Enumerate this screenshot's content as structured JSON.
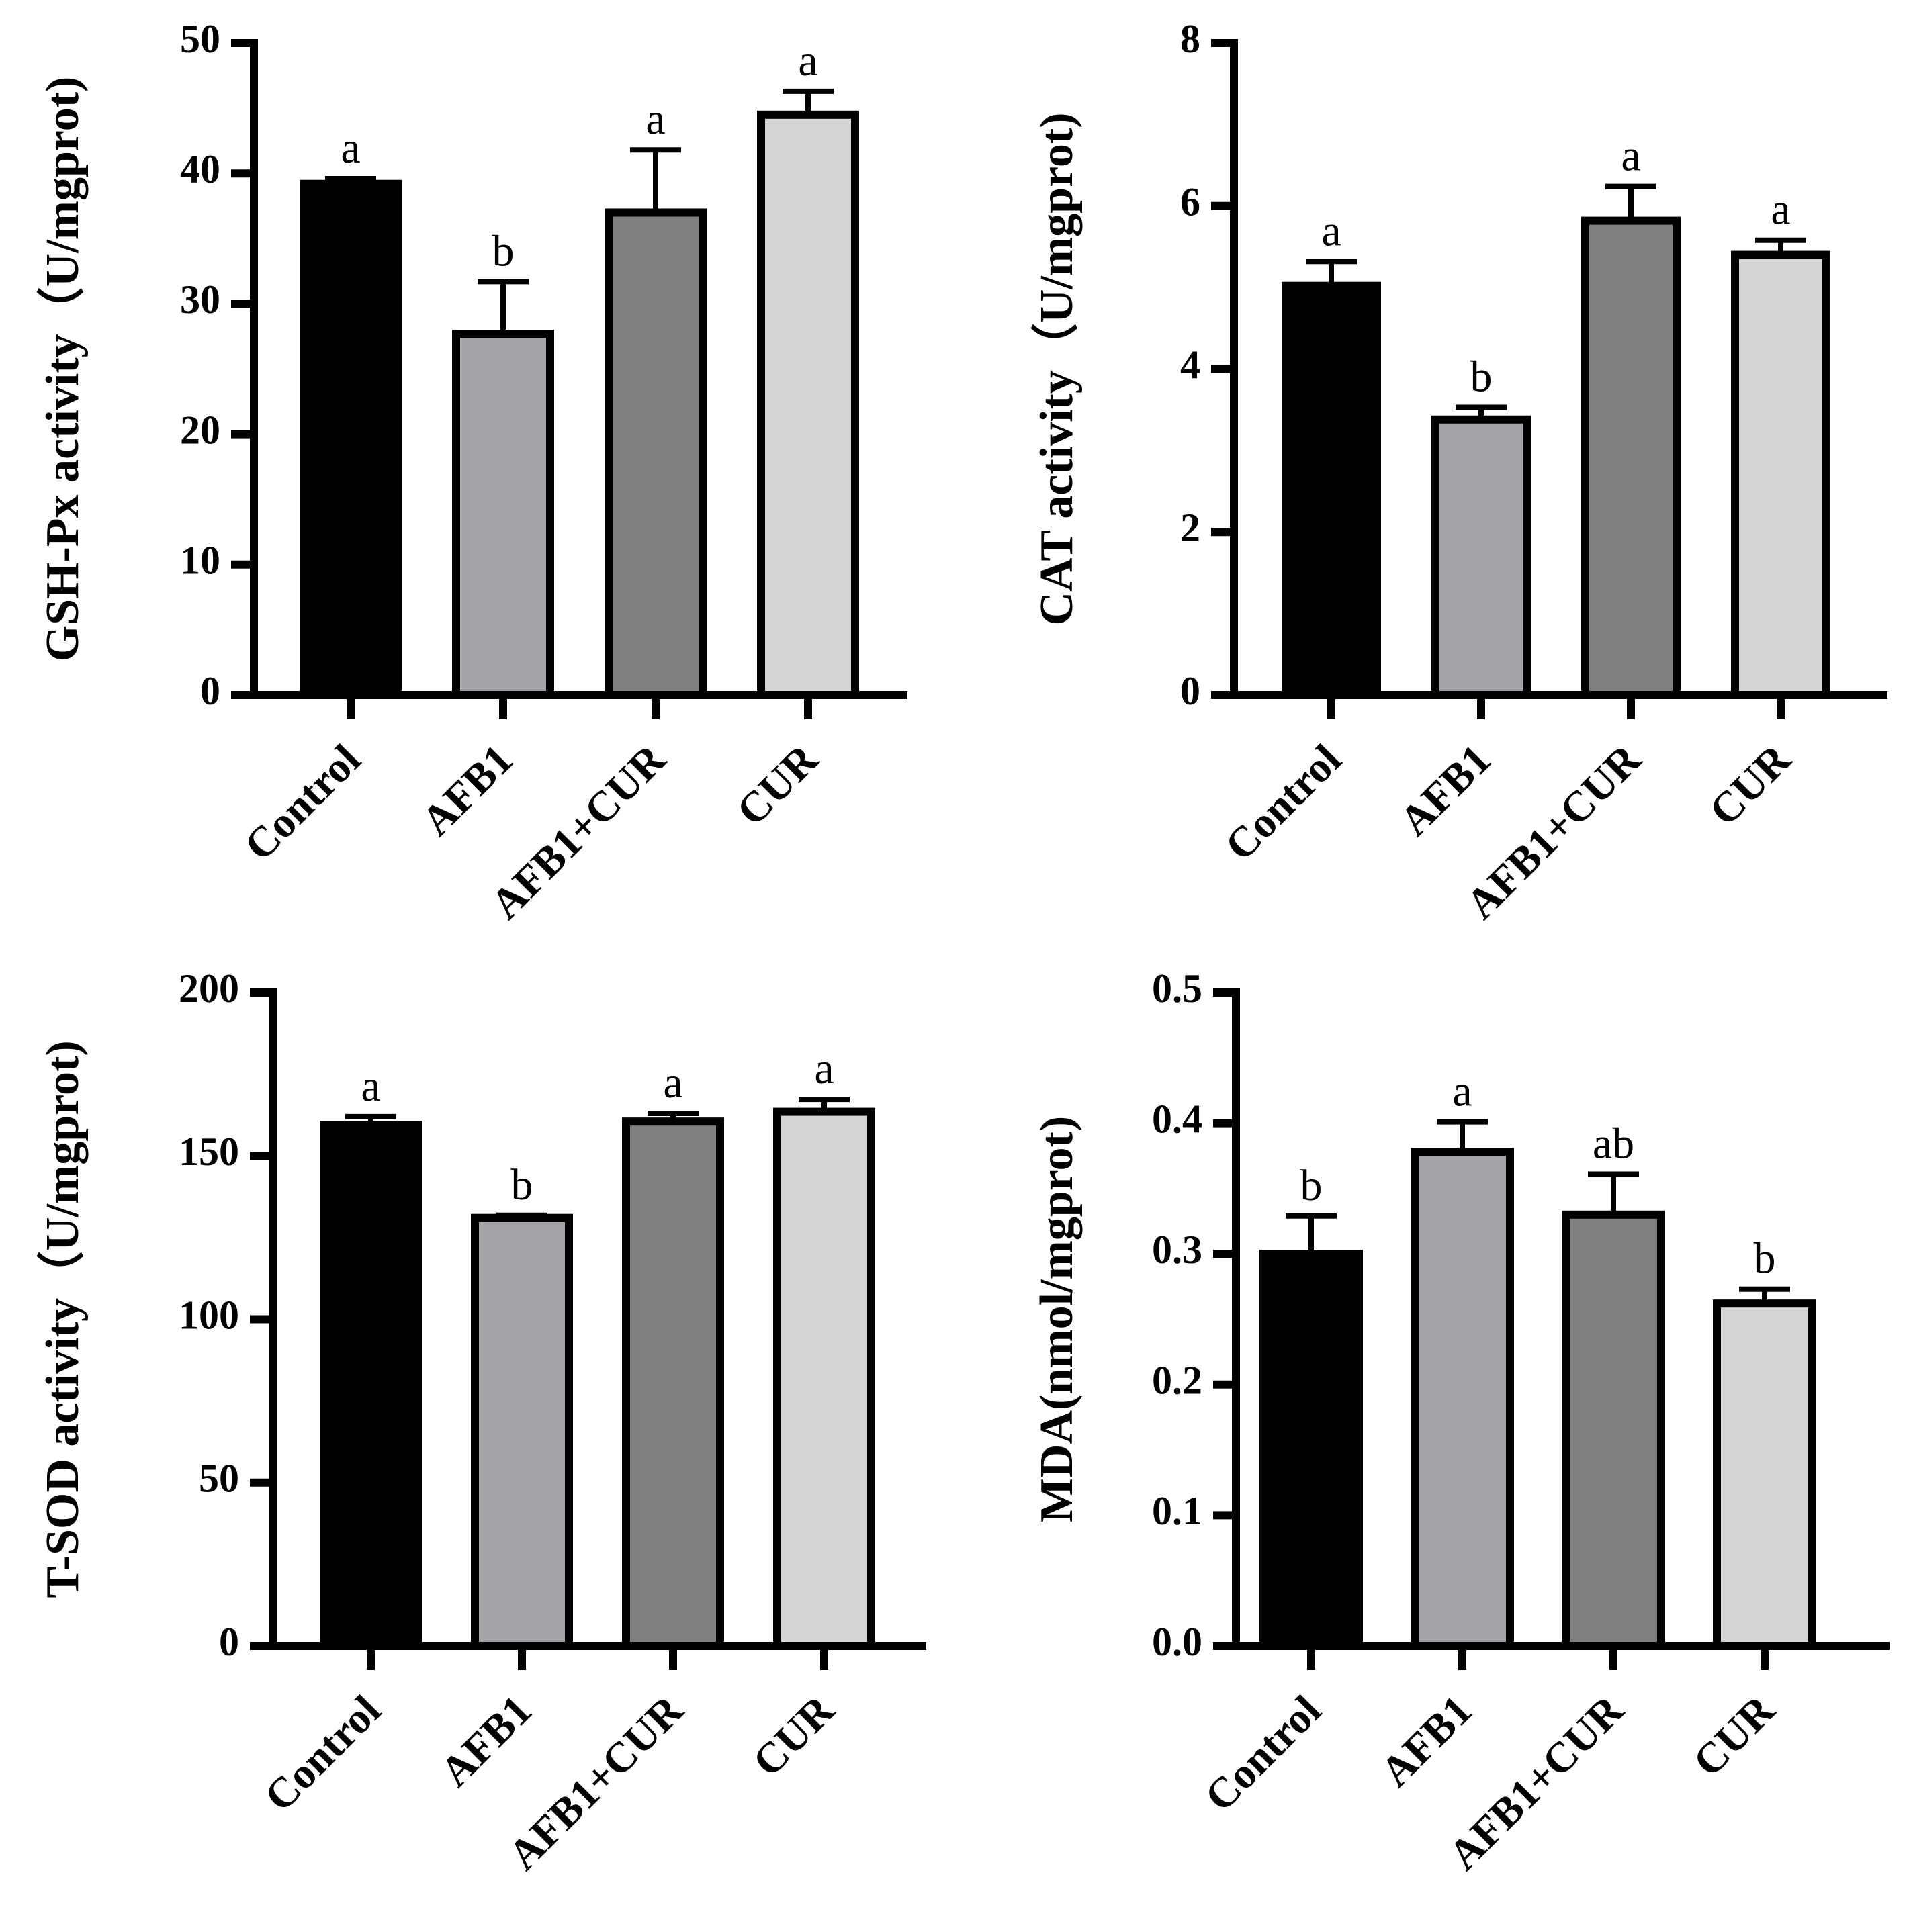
{
  "chart_data": [
    {
      "type": "bar",
      "ylabel": "GSH-Px activity（U/mgprot)",
      "categories": [
        "Control",
        "AFB1",
        "AFB1+CUR",
        "CUR"
      ],
      "values": [
        39.2,
        27.7,
        37.0,
        44.5
      ],
      "errors": [
        0.4,
        4.0,
        4.8,
        1.8
      ],
      "significance": [
        "a",
        "b",
        "a",
        "a"
      ],
      "colors": [
        "#000000",
        "#a3a3a8",
        "#7f7f7f",
        "#d4d4d4"
      ],
      "ylim": [
        0,
        50
      ],
      "yticks": [
        "0",
        "10",
        "20",
        "30",
        "40",
        "50"
      ]
    },
    {
      "type": "bar",
      "ylabel": "CAT activity（U/mgprot)",
      "categories": [
        "Control",
        "AFB1",
        "AFB1+CUR",
        "CUR"
      ],
      "values": [
        5.02,
        3.38,
        5.82,
        5.4
      ],
      "errors": [
        0.3,
        0.15,
        0.42,
        0.18
      ],
      "significance": [
        "a",
        "b",
        "a",
        "a"
      ],
      "colors": [
        "#000000",
        "#a3a3a8",
        "#7f7f7f",
        "#d4d4d4"
      ],
      "ylim": [
        0,
        8
      ],
      "yticks": [
        "0",
        "2",
        "4",
        "6",
        "8"
      ]
    },
    {
      "type": "bar",
      "ylabel": "T-SOD activity（U/mgprot)",
      "categories": [
        "Control",
        "AFB1",
        "AFB1+CUR",
        "CUR"
      ],
      "values": [
        159.5,
        131.0,
        160.5,
        163.5
      ],
      "errors": [
        2.5,
        0.8,
        2.5,
        3.8
      ],
      "significance": [
        "a",
        "b",
        "a",
        "a"
      ],
      "colors": [
        "#000000",
        "#a3a3a8",
        "#7f7f7f",
        "#d4d4d4"
      ],
      "ylim": [
        0,
        200
      ],
      "yticks": [
        "0",
        "50",
        "100",
        "150",
        "200"
      ]
    },
    {
      "type": "bar",
      "ylabel": "MDA(nmol/mgprot)",
      "categories": [
        "Control",
        "AFB1",
        "AFB1+CUR",
        "CUR"
      ],
      "values": [
        0.3,
        0.378,
        0.33,
        0.262
      ],
      "errors": [
        0.029,
        0.023,
        0.031,
        0.011
      ],
      "significance": [
        "b",
        "a",
        "ab",
        "b"
      ],
      "colors": [
        "#000000",
        "#a3a3a8",
        "#7f7f7f",
        "#d4d4d4"
      ],
      "ylim": [
        0,
        0.5
      ],
      "yticks": [
        "0.0",
        "0.1",
        "0.2",
        "0.3",
        "0.4",
        "0.5"
      ]
    }
  ]
}
